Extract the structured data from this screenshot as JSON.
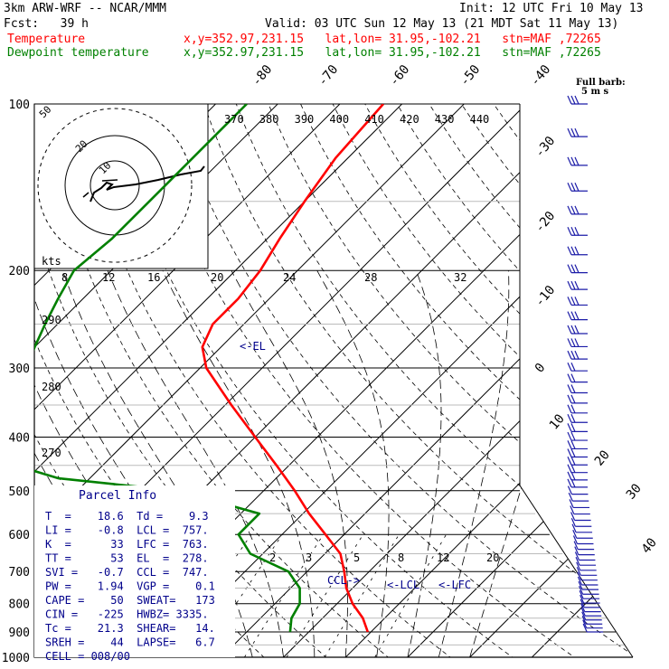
{
  "header": {
    "model_line": "3km ARW-WRF -- NCAR/MMM",
    "init_line": "Init: 12 UTC Fri 10 May 13",
    "fcst_line": "Fcst:   39 h",
    "valid_line": "Valid: 03 UTC Sun 12 May 13 (21 MDT Sat 11 May 13)",
    "temp_label": "Temperature",
    "dew_label": "Dewpoint temperature",
    "temp_loc": "x,y=352.97,231.15   lat,lon= 31.95,-102.21   stn=MAF ,72265",
    "dew_loc": "x,y=352.97,231.15   lat,lon= 31.95,-102.21   stn=MAF ,72265"
  },
  "colors": {
    "temperature": "#ff0000",
    "dewpoint": "#008000",
    "parcel_text": "#00008b",
    "barbs": "#1c1ca8",
    "grid": "#000000"
  },
  "legend": {
    "full_barb_line1": "Full barb:",
    "full_barb_line2": "5 m s",
    "kts_label": "kts"
  },
  "parcel_info": {
    "title": "Parcel Info",
    "rows": [
      "T  =    18.6  Td =    9.3",
      "LI =    -0.8  LCL =  757.",
      "K  =      33  LFC =  763.",
      "TT =      53  EL  =  278.",
      "SVI =   -0.7  CCL =  747.",
      "PW =    1.94  VGP =    0.1",
      "CAPE =    50  SWEAT=   173",
      "CIN =   -225  HWBZ= 3335.",
      "Tc =    21.3  SHEAR=   14.",
      "SREH =    44  LAPSE=   6.7",
      "CELL = 008/00"
    ]
  },
  "level_markers": {
    "el": "<-EL",
    "lcl": "<-LCL",
    "lfc": "<-LFC",
    "ccl": "CCL->"
  },
  "chart_data": {
    "type": "skew-t",
    "pressure_levels": [
      100,
      200,
      300,
      400,
      500,
      600,
      700,
      800,
      900,
      1000
    ],
    "temp_isotherm_labels": [
      "-80",
      "-70",
      "-60",
      "-50",
      "-40",
      "-30",
      "-20",
      "-10",
      "0",
      "10",
      "20",
      "30",
      "40"
    ],
    "theta_labels_top": [
      "370",
      "380",
      "390",
      "400",
      "410",
      "420",
      "430",
      "440"
    ],
    "theta_labels_left": [
      "290",
      "280",
      "270"
    ],
    "mixing_ratio_labels": [
      "2",
      "3",
      "5",
      "8",
      "12",
      "20"
    ],
    "hodograph_ring_labels": [
      "50",
      "20",
      "10"
    ],
    "hodograph_speed_labels": [
      "8",
      "12",
      "16",
      "20",
      "24",
      "28",
      "32"
    ],
    "temperature": {
      "pressure": [
        100,
        125,
        150,
        175,
        200,
        225,
        250,
        275,
        300,
        350,
        400,
        450,
        500,
        550,
        600,
        650,
        700,
        750,
        800,
        850,
        900
      ],
      "value": [
        -63,
        -62,
        -60,
        -58,
        -56,
        -55,
        -55,
        -53,
        -49,
        -39,
        -30,
        -22,
        -15,
        -9,
        -3,
        2.5,
        6,
        9,
        12.5,
        16.5,
        19.5
      ]
    },
    "dewpoint": {
      "pressure": [
        100,
        125,
        150,
        175,
        200,
        225,
        250,
        275,
        300,
        350,
        400,
        425,
        450,
        475,
        500,
        550,
        600,
        650,
        700,
        750,
        800,
        850,
        900
      ],
      "value": [
        -85,
        -85,
        -85,
        -85,
        -86,
        -84,
        -82,
        -80,
        -78,
        -77,
        -68,
        -70,
        -64,
        -55,
        -34,
        -17,
        -17,
        -12,
        -3,
        1.5,
        4,
        5,
        7
      ]
    },
    "wind_barbs_count": 56
  }
}
